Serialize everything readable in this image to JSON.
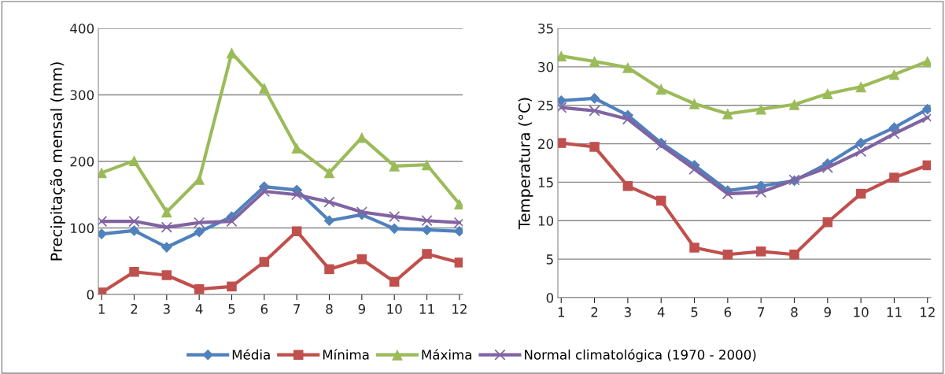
{
  "chart_data": [
    {
      "type": "line",
      "ylabel": "Precipitação mensal (mm)",
      "categories": [
        "1",
        "2",
        "3",
        "4",
        "5",
        "6",
        "7",
        "8",
        "9",
        "10",
        "11",
        "12"
      ],
      "ylim": [
        0,
        400
      ],
      "yticks": [
        0,
        100,
        200,
        300,
        400
      ],
      "grid": "y",
      "legend": "bottom",
      "series": [
        {
          "name": "Média",
          "color": "#4f81bd",
          "marker": "diamond",
          "values": [
            91,
            96,
            71,
            94,
            117,
            162,
            157,
            111,
            120,
            99,
            97,
            95
          ]
        },
        {
          "name": "Mínima",
          "color": "#c0504d",
          "marker": "square",
          "values": [
            3,
            34,
            29,
            8,
            12,
            49,
            95,
            38,
            53,
            19,
            61,
            48
          ]
        },
        {
          "name": "Máxima",
          "color": "#9bbb59",
          "marker": "triangle",
          "values": [
            183,
            201,
            124,
            173,
            363,
            310,
            220,
            183,
            236,
            193,
            195,
            136
          ]
        },
        {
          "name": "Normal climatológica (1970 - 2000)",
          "color": "#8064a2",
          "marker": "cross",
          "values": [
            110,
            110,
            101,
            108,
            110,
            155,
            150,
            139,
            124,
            117,
            111,
            108
          ]
        }
      ]
    },
    {
      "type": "line",
      "ylabel": "Temperatura (°C)",
      "categories": [
        "1",
        "2",
        "3",
        "4",
        "5",
        "6",
        "7",
        "8",
        "9",
        "10",
        "11",
        "12"
      ],
      "ylim": [
        0,
        35
      ],
      "yticks": [
        0,
        5,
        10,
        15,
        20,
        25,
        30,
        35
      ],
      "grid": "y",
      "legend": "bottom",
      "series": [
        {
          "name": "Média",
          "color": "#4f81bd",
          "marker": "diamond",
          "values": [
            25.6,
            25.9,
            23.7,
            20.1,
            17.2,
            13.9,
            14.5,
            15.2,
            17.4,
            20.1,
            22.1,
            24.5
          ]
        },
        {
          "name": "Mínima",
          "color": "#c0504d",
          "marker": "square",
          "values": [
            20.1,
            19.6,
            14.5,
            12.6,
            6.5,
            5.6,
            6.0,
            5.6,
            9.8,
            13.5,
            15.6,
            17.2
          ]
        },
        {
          "name": "Máxima",
          "color": "#9bbb59",
          "marker": "triangle",
          "values": [
            31.4,
            30.7,
            29.9,
            27.1,
            25.2,
            23.9,
            24.5,
            25.1,
            26.5,
            27.4,
            29.0,
            30.7
          ]
        },
        {
          "name": "Normal climatológica (1970 - 2000)",
          "color": "#8064a2",
          "marker": "cross",
          "values": [
            24.7,
            24.3,
            23.2,
            19.8,
            16.7,
            13.5,
            13.7,
            15.3,
            16.9,
            19.0,
            21.3,
            23.4
          ]
        }
      ]
    }
  ]
}
